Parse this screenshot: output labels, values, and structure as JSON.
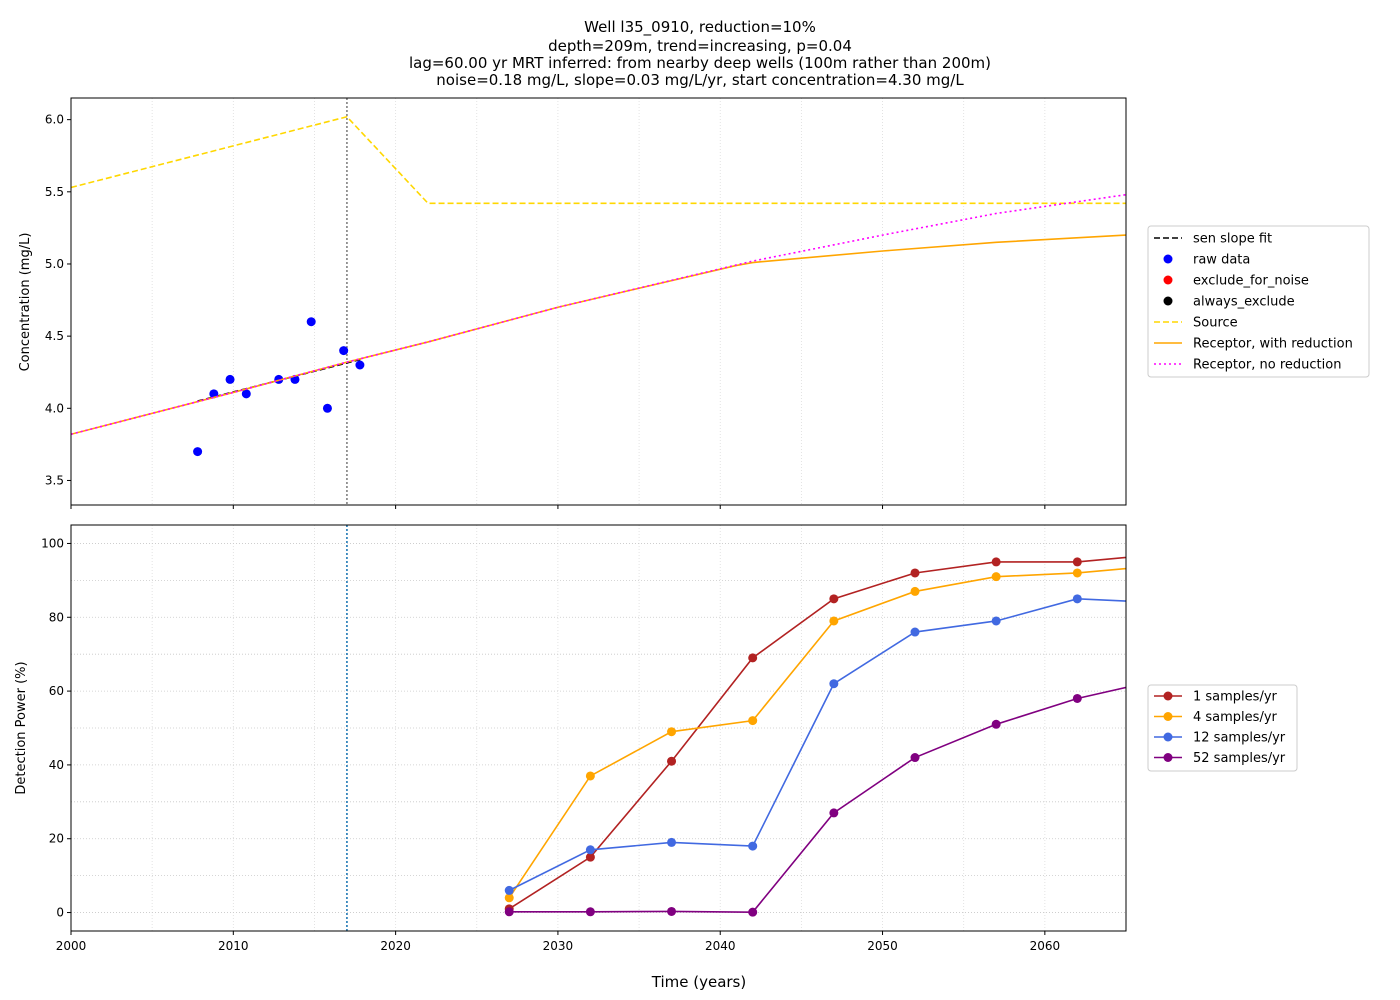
{
  "chart_data": [
    {
      "type": "line",
      "title_lines": [
        "Well l35_0910, reduction=10%",
        "depth=209m, trend=increasing, p=0.04",
        "lag=60.00 yr MRT inferred: from nearby deep wells (100m rather than 200m)",
        "noise=0.18 mg/L, slope=0.03 mg/L/yr, start concentration=4.30 mg/L"
      ],
      "xlabel": "",
      "ylabel": "Concentration (mg/L)",
      "xlim": [
        2000,
        2065
      ],
      "ylim": [
        3.33,
        6.15
      ],
      "yticks": [
        3.5,
        4.0,
        4.5,
        5.0,
        5.5,
        6.0
      ],
      "ytick_labels": [
        "3.5",
        "4.0",
        "4.5",
        "5.0",
        "5.5",
        "6.0"
      ],
      "xticks": [
        2000,
        2010,
        2020,
        2030,
        2040,
        2050,
        2060
      ],
      "grid": "vertical dotted",
      "vline": {
        "x": 2017,
        "color": "#808080",
        "style": "dotted"
      },
      "legend_position": "right",
      "series": [
        {
          "name": "sen slope fit",
          "kind": "line",
          "color": "#000000",
          "dash": "dashed",
          "x": [
            2007.8,
            2017.9
          ],
          "y": [
            4.05,
            4.34
          ]
        },
        {
          "name": "raw data",
          "kind": "scatter",
          "color": "#0000ff",
          "x": [
            2007.8,
            2008.8,
            2009.8,
            2010.8,
            2012.8,
            2013.8,
            2014.8,
            2015.8,
            2016.8,
            2017.8
          ],
          "y": [
            3.7,
            4.1,
            4.2,
            4.1,
            4.2,
            4.2,
            4.6,
            4.0,
            4.4,
            4.3
          ]
        },
        {
          "name": "exclude_for_noise",
          "kind": "scatter",
          "color": "#ff0000",
          "x": [],
          "y": []
        },
        {
          "name": "always_exclude",
          "kind": "scatter",
          "color": "#000000",
          "x": [],
          "y": []
        },
        {
          "name": "Source",
          "kind": "line",
          "color": "#ffd700",
          "dash": "dashed",
          "x": [
            2000,
            2017,
            2022,
            2065
          ],
          "y": [
            5.53,
            6.02,
            5.42,
            5.42
          ]
        },
        {
          "name": "Receptor, with reduction",
          "kind": "line",
          "color": "#ffa500",
          "dash": "solid",
          "x": [
            2000,
            2010,
            2017,
            2022,
            2030,
            2041,
            2042,
            2050,
            2057,
            2065
          ],
          "y": [
            3.82,
            4.11,
            4.32,
            4.46,
            4.7,
            4.99,
            5.01,
            5.09,
            5.15,
            5.2
          ]
        },
        {
          "name": "Receptor, no reduction",
          "kind": "line",
          "color": "#ff00ff",
          "dash": "dotted",
          "x": [
            2000,
            2010,
            2017,
            2022,
            2030,
            2042,
            2050,
            2057,
            2065
          ],
          "y": [
            3.82,
            4.11,
            4.32,
            4.46,
            4.7,
            5.02,
            5.2,
            5.35,
            5.48
          ]
        }
      ]
    },
    {
      "type": "line",
      "xlabel": "Time (years)",
      "ylabel": "Detection Power (%)",
      "xlim": [
        2000,
        2065
      ],
      "ylim": [
        -5,
        105
      ],
      "yticks": [
        0,
        20,
        40,
        60,
        80,
        100
      ],
      "ytick_labels": [
        "0",
        "20",
        "40",
        "60",
        "80",
        "100"
      ],
      "xticks": [
        2000,
        2010,
        2020,
        2030,
        2040,
        2050,
        2060
      ],
      "xtick_labels": [
        "2000",
        "2010",
        "2020",
        "2030",
        "2040",
        "2050",
        "2060"
      ],
      "grid": "dotted",
      "vline": {
        "x": 2017,
        "color": "#1f77b4",
        "style": "dotted"
      },
      "legend_position": "right",
      "x": [
        2027,
        2032,
        2037,
        2042,
        2047,
        2052,
        2057,
        2062,
        2067
      ],
      "series": [
        {
          "name": "1 samples/yr",
          "color": "#b22222",
          "values": [
            1,
            15,
            41,
            69,
            85,
            92,
            95,
            95,
            97
          ]
        },
        {
          "name": "4 samples/yr",
          "color": "#ffa500",
          "values": [
            4,
            37,
            49,
            52,
            79,
            87,
            91,
            92,
            94
          ]
        },
        {
          "name": "12 samples/yr",
          "color": "#4169e1",
          "values": [
            6,
            17,
            19,
            18,
            62,
            76,
            79,
            85,
            84
          ]
        },
        {
          "name": "52 samples/yr",
          "color": "#800080",
          "values": [
            0.2,
            0.2,
            0.3,
            0.1,
            27,
            42,
            51,
            58,
            63
          ]
        }
      ]
    }
  ]
}
